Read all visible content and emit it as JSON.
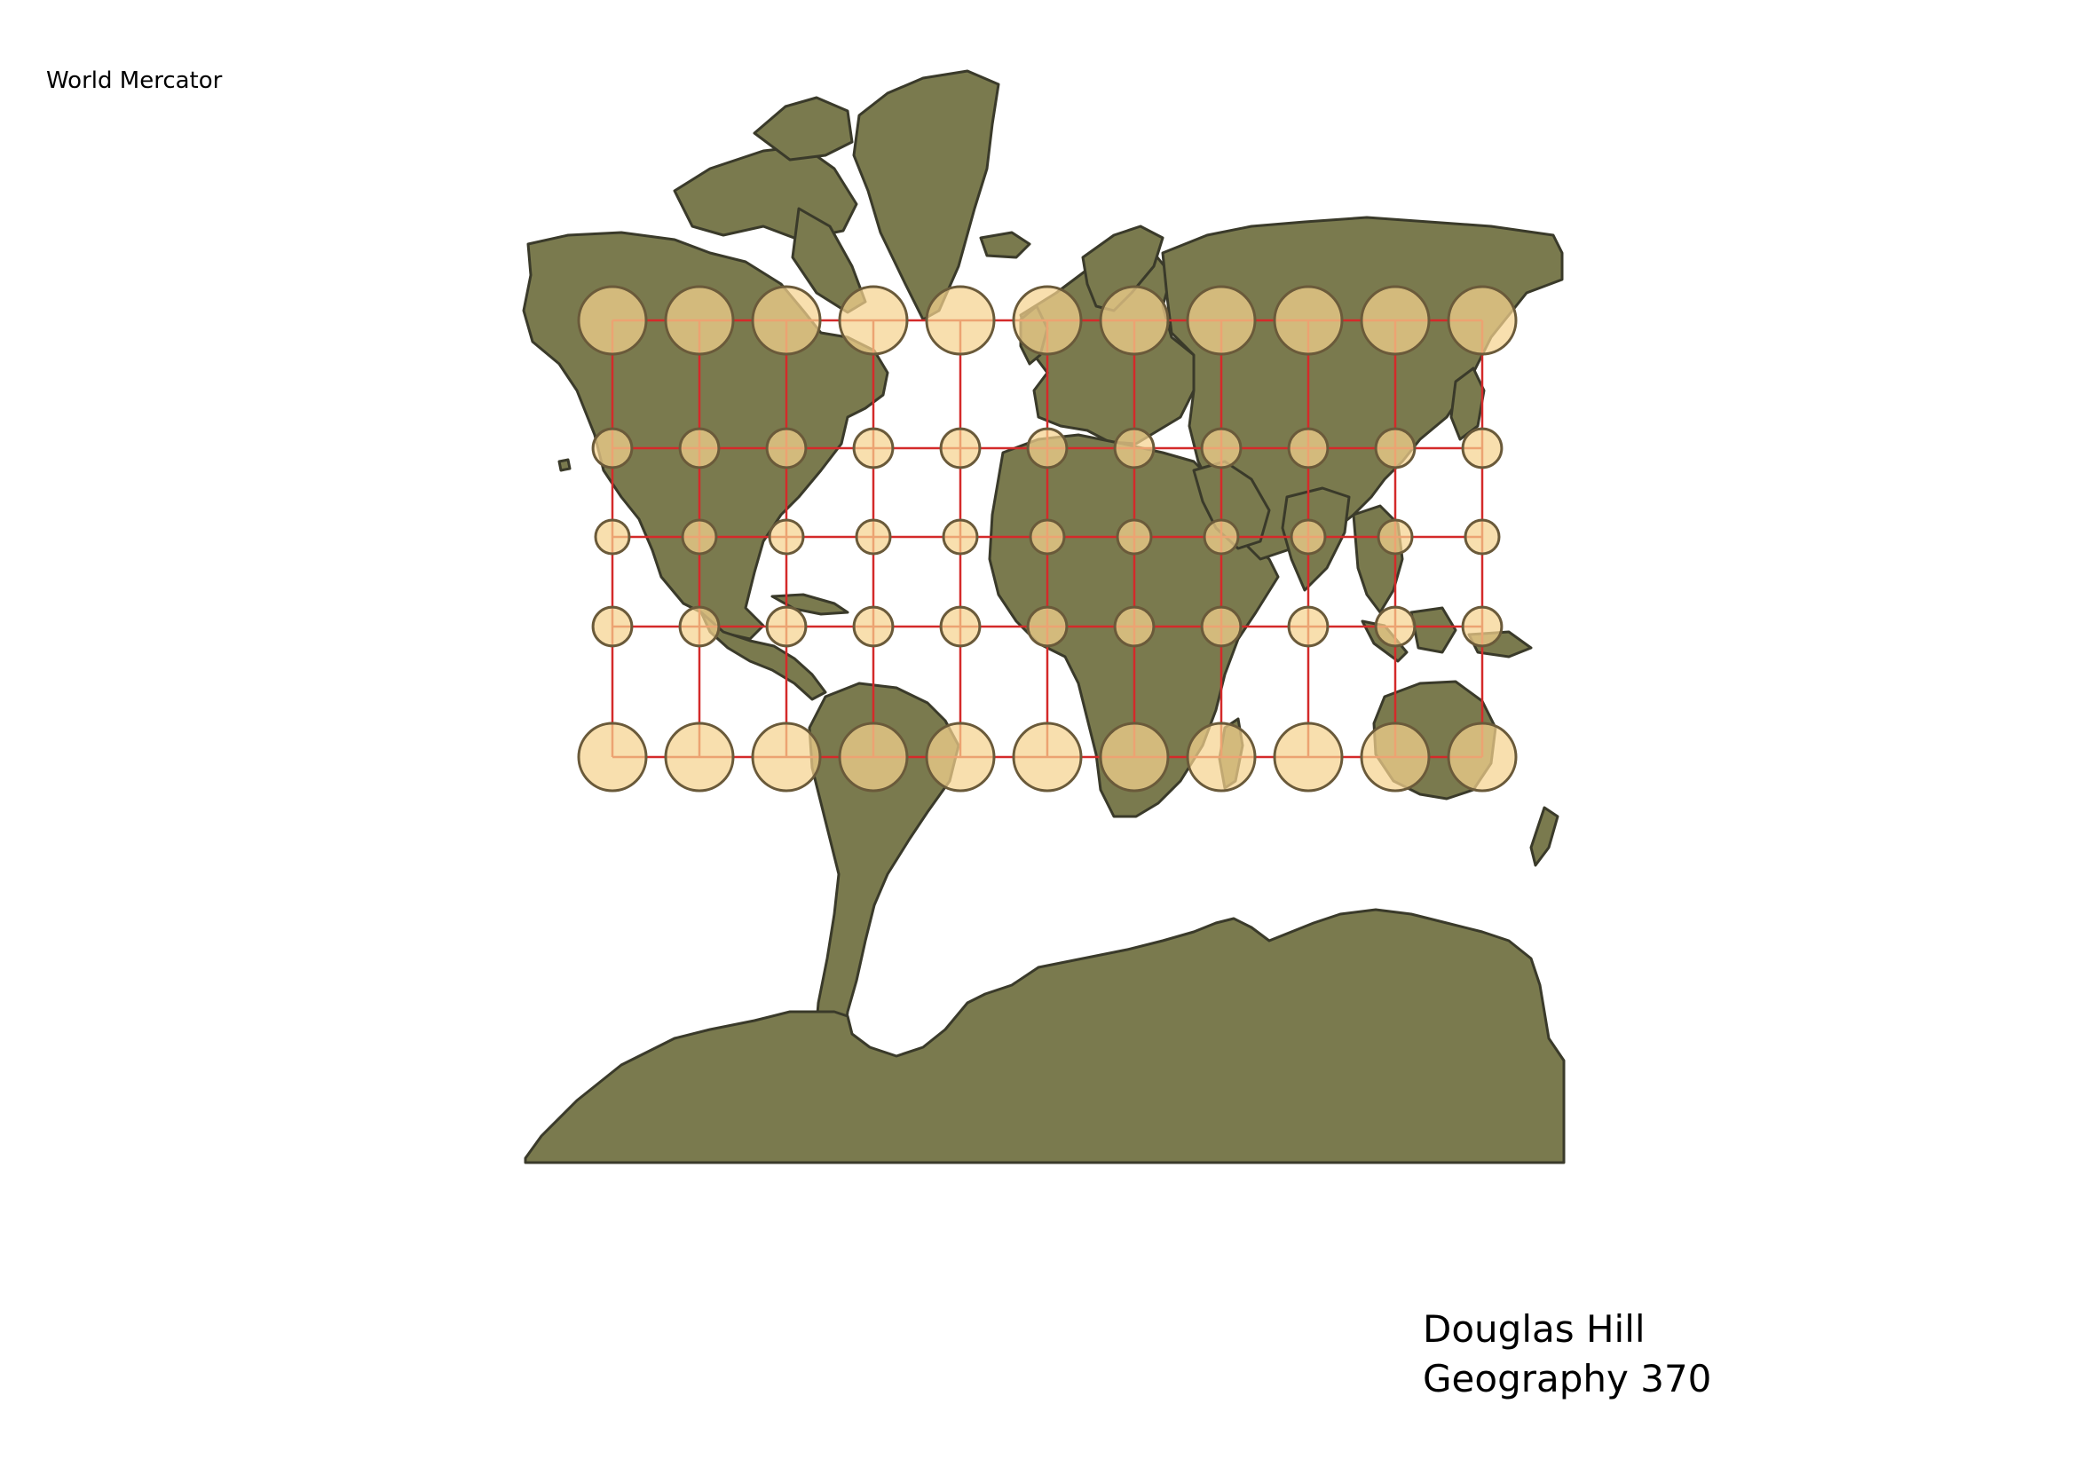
{
  "title": "World Mercator",
  "author": {
    "name": "Douglas Hill",
    "course": "Geography 370"
  },
  "map": {
    "projection": "Mercator",
    "land_color": "#7a7a4e",
    "land_outline_color": "#3a3a2a",
    "graticule_color": "#d42a2a",
    "indicatrix_fill": "#f5d38f",
    "indicatrix_stroke": "#6a5a3a",
    "graticule_longitudes": [
      -150,
      -120,
      -90,
      -60,
      -30,
      0,
      30,
      60,
      90,
      120,
      150
    ],
    "graticule_latitudes": [
      60,
      30,
      0,
      -30,
      -60
    ],
    "indicatrix_note": "Tissot indicatrices at graticule intersections; circles grow with latitude"
  }
}
